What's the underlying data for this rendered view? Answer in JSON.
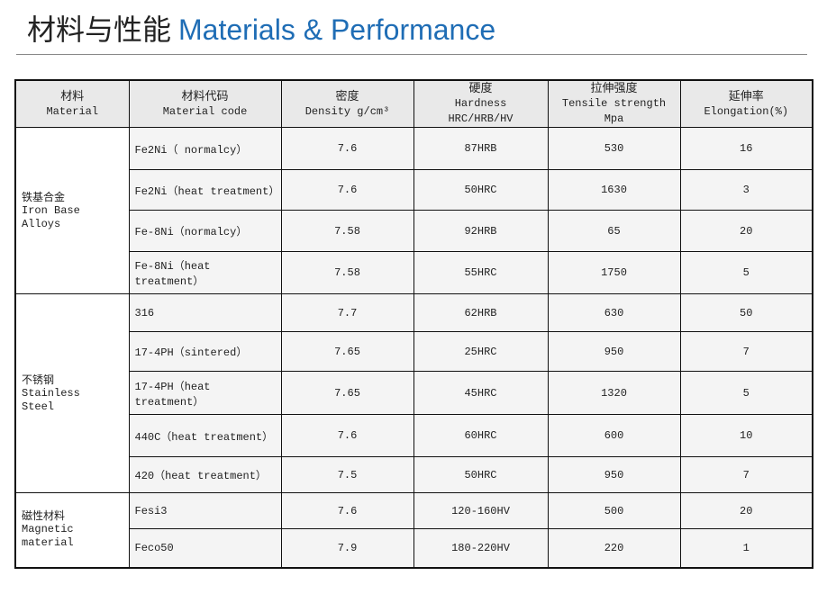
{
  "header": {
    "title_cn": "材料与性能",
    "title_en": "Materials & Performance"
  },
  "table": {
    "columns": [
      {
        "cn": "材料",
        "en": "Material"
      },
      {
        "cn": "材料代码",
        "en": "Material code"
      },
      {
        "cn": "密度",
        "en": "Density  g/cm³"
      },
      {
        "cn": "硬度",
        "en": "Hardness HRC/HRB/HV"
      },
      {
        "cn": "拉伸强度",
        "en": "Tensile strength Mpa"
      },
      {
        "cn": "延伸率",
        "en": "Elongation(%)"
      }
    ],
    "groups": [
      {
        "cn": "铁基合金",
        "en": "Iron Base Alloys",
        "rows": [
          [
            "Fe2Ni（ normalcy）",
            "7.6",
            "87HRB",
            "530",
            "16"
          ],
          [
            "Fe2Ni（heat treatment）",
            "7.6",
            "50HRC",
            "1630",
            "3"
          ],
          [
            "Fe-8Ni（normalcy）",
            "7.58",
            "92HRB",
            "65",
            "20"
          ],
          [
            "Fe-8Ni（heat treatment）",
            "7.58",
            "55HRC",
            "1750",
            "5"
          ]
        ]
      },
      {
        "cn": "不锈钢",
        "en": "Stainless Steel",
        "rows": [
          [
            "316",
            "7.7",
            "62HRB",
            "630",
            "50"
          ],
          [
            "17-4PH（sintered）",
            "7.65",
            "25HRC",
            "950",
            "7"
          ],
          [
            "17-4PH（heat treatment）",
            "7.65",
            "45HRC",
            "1320",
            "5"
          ],
          [
            "440C（heat treatment）",
            "7.6",
            "60HRC",
            "600",
            "10"
          ],
          [
            "420（heat treatment）",
            "7.5",
            "50HRC",
            "950",
            "7"
          ]
        ]
      },
      {
        "cn": "磁性材料",
        "en": "Magnetic material",
        "rows": [
          [
            "Fesi3",
            "7.6",
            "120-160HV",
            "500",
            "20"
          ],
          [
            "Feco50",
            "7.9",
            "180-220HV",
            "220",
            "1"
          ]
        ]
      }
    ]
  }
}
